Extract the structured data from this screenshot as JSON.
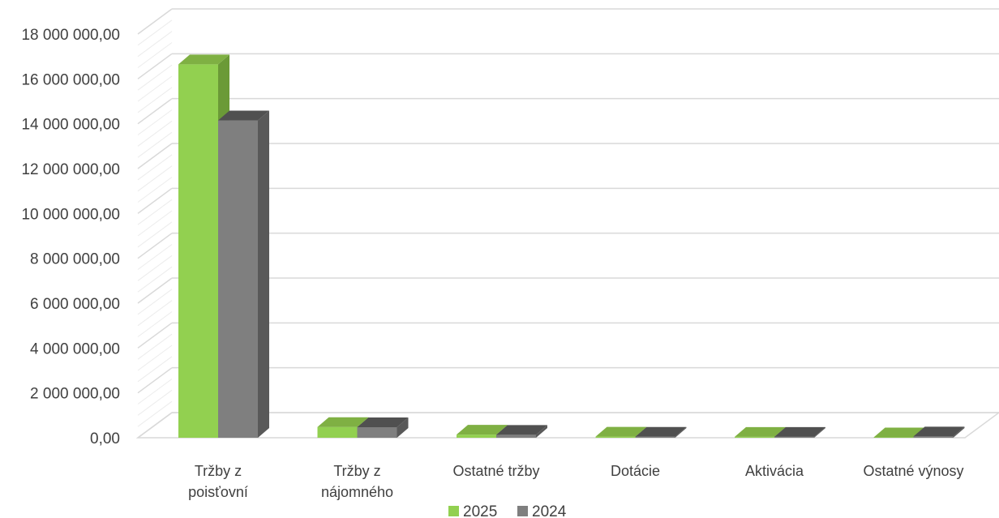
{
  "chart_data": {
    "type": "bar",
    "style": "3d-clustered-column",
    "categories": [
      [
        "Tržby z",
        "poisťovní"
      ],
      [
        "Tržby z",
        "nájomného"
      ],
      [
        "Ostatné tržby"
      ],
      [
        "Dotácie"
      ],
      [
        "Aktivácia"
      ],
      [
        "Ostatné výnosy"
      ]
    ],
    "series": [
      {
        "name": "2025",
        "color": "#92d050",
        "side_color": "#6b9a37",
        "top_color": "#7fb043",
        "values": [
          16650000,
          480000,
          140000,
          50000,
          40000,
          20000
        ]
      },
      {
        "name": "2024",
        "color": "#7f7f7f",
        "side_color": "#595959",
        "top_color": "#505050",
        "values": [
          14150000,
          470000,
          130000,
          45000,
          40000,
          60000
        ]
      }
    ],
    "ylim": [
      0,
      18000000
    ],
    "yticks": [
      {
        "value": 0,
        "label": "0,00"
      },
      {
        "value": 2000000,
        "label": "2 000 000,00"
      },
      {
        "value": 4000000,
        "label": "4 000 000,00"
      },
      {
        "value": 6000000,
        "label": "6 000 000,00"
      },
      {
        "value": 8000000,
        "label": "8 000 000,00"
      },
      {
        "value": 10000000,
        "label": "10 000 000,00"
      },
      {
        "value": 12000000,
        "label": "12 000 000,00"
      },
      {
        "value": 14000000,
        "label": "14 000 000,00"
      },
      {
        "value": 16000000,
        "label": "16 000 000,00"
      },
      {
        "value": 18000000,
        "label": "18 000 000,00"
      }
    ],
    "grid": true,
    "legend_position": "bottom",
    "title": "",
    "xlabel": "",
    "ylabel": ""
  }
}
